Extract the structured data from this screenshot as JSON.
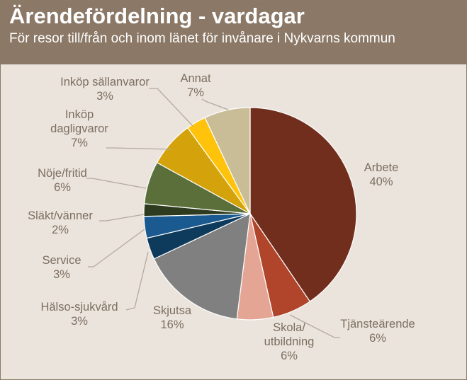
{
  "header": {
    "title": "Ärendefördelning - vardagar",
    "subtitle": "För resor till/från och inom länet för invånare i Nykvarns kommun"
  },
  "chart_data": {
    "type": "pie",
    "title": "Ärendefördelning - vardagar",
    "subtitle": "För resor till/från och inom länet för invånare i Nykvarns kommun",
    "start": "12 o'clock",
    "direction": "clockwise",
    "slices": [
      {
        "label": "Arbete",
        "percent_label": "40%",
        "value": 40.5,
        "color": "#722e1c"
      },
      {
        "label": "Tjänsteärende",
        "percent_label": "6%",
        "value": 6.0,
        "color": "#b0452c"
      },
      {
        "label": "Skola/ utbildning",
        "percent_label": "6%",
        "value": 5.5,
        "color": "#e5a595"
      },
      {
        "label": "Skjutsa",
        "percent_label": "16%",
        "value": 16.0,
        "color": "#808080"
      },
      {
        "label": "Hälso-sjukvård",
        "percent_label": "3%",
        "value": 3.3,
        "color": "#0e3a5c"
      },
      {
        "label": "Service",
        "percent_label": "3%",
        "value": 3.3,
        "color": "#1b5a90"
      },
      {
        "label": "Släkt/vänner",
        "percent_label": "2%",
        "value": 1.9,
        "color": "#2f3b1e"
      },
      {
        "label": "Nöje/fritid",
        "percent_label": "6%",
        "value": 6.5,
        "color": "#5a6f3a"
      },
      {
        "label": "Inköp dagligvaror",
        "percent_label": "7%",
        "value": 7.0,
        "color": "#d4a20a"
      },
      {
        "label": "Inköp sällanvaror",
        "percent_label": "3%",
        "value": 3.0,
        "color": "#fec30a"
      },
      {
        "label": "Annat",
        "percent_label": "7%",
        "value": 7.0,
        "color": "#c9bd98"
      }
    ]
  }
}
